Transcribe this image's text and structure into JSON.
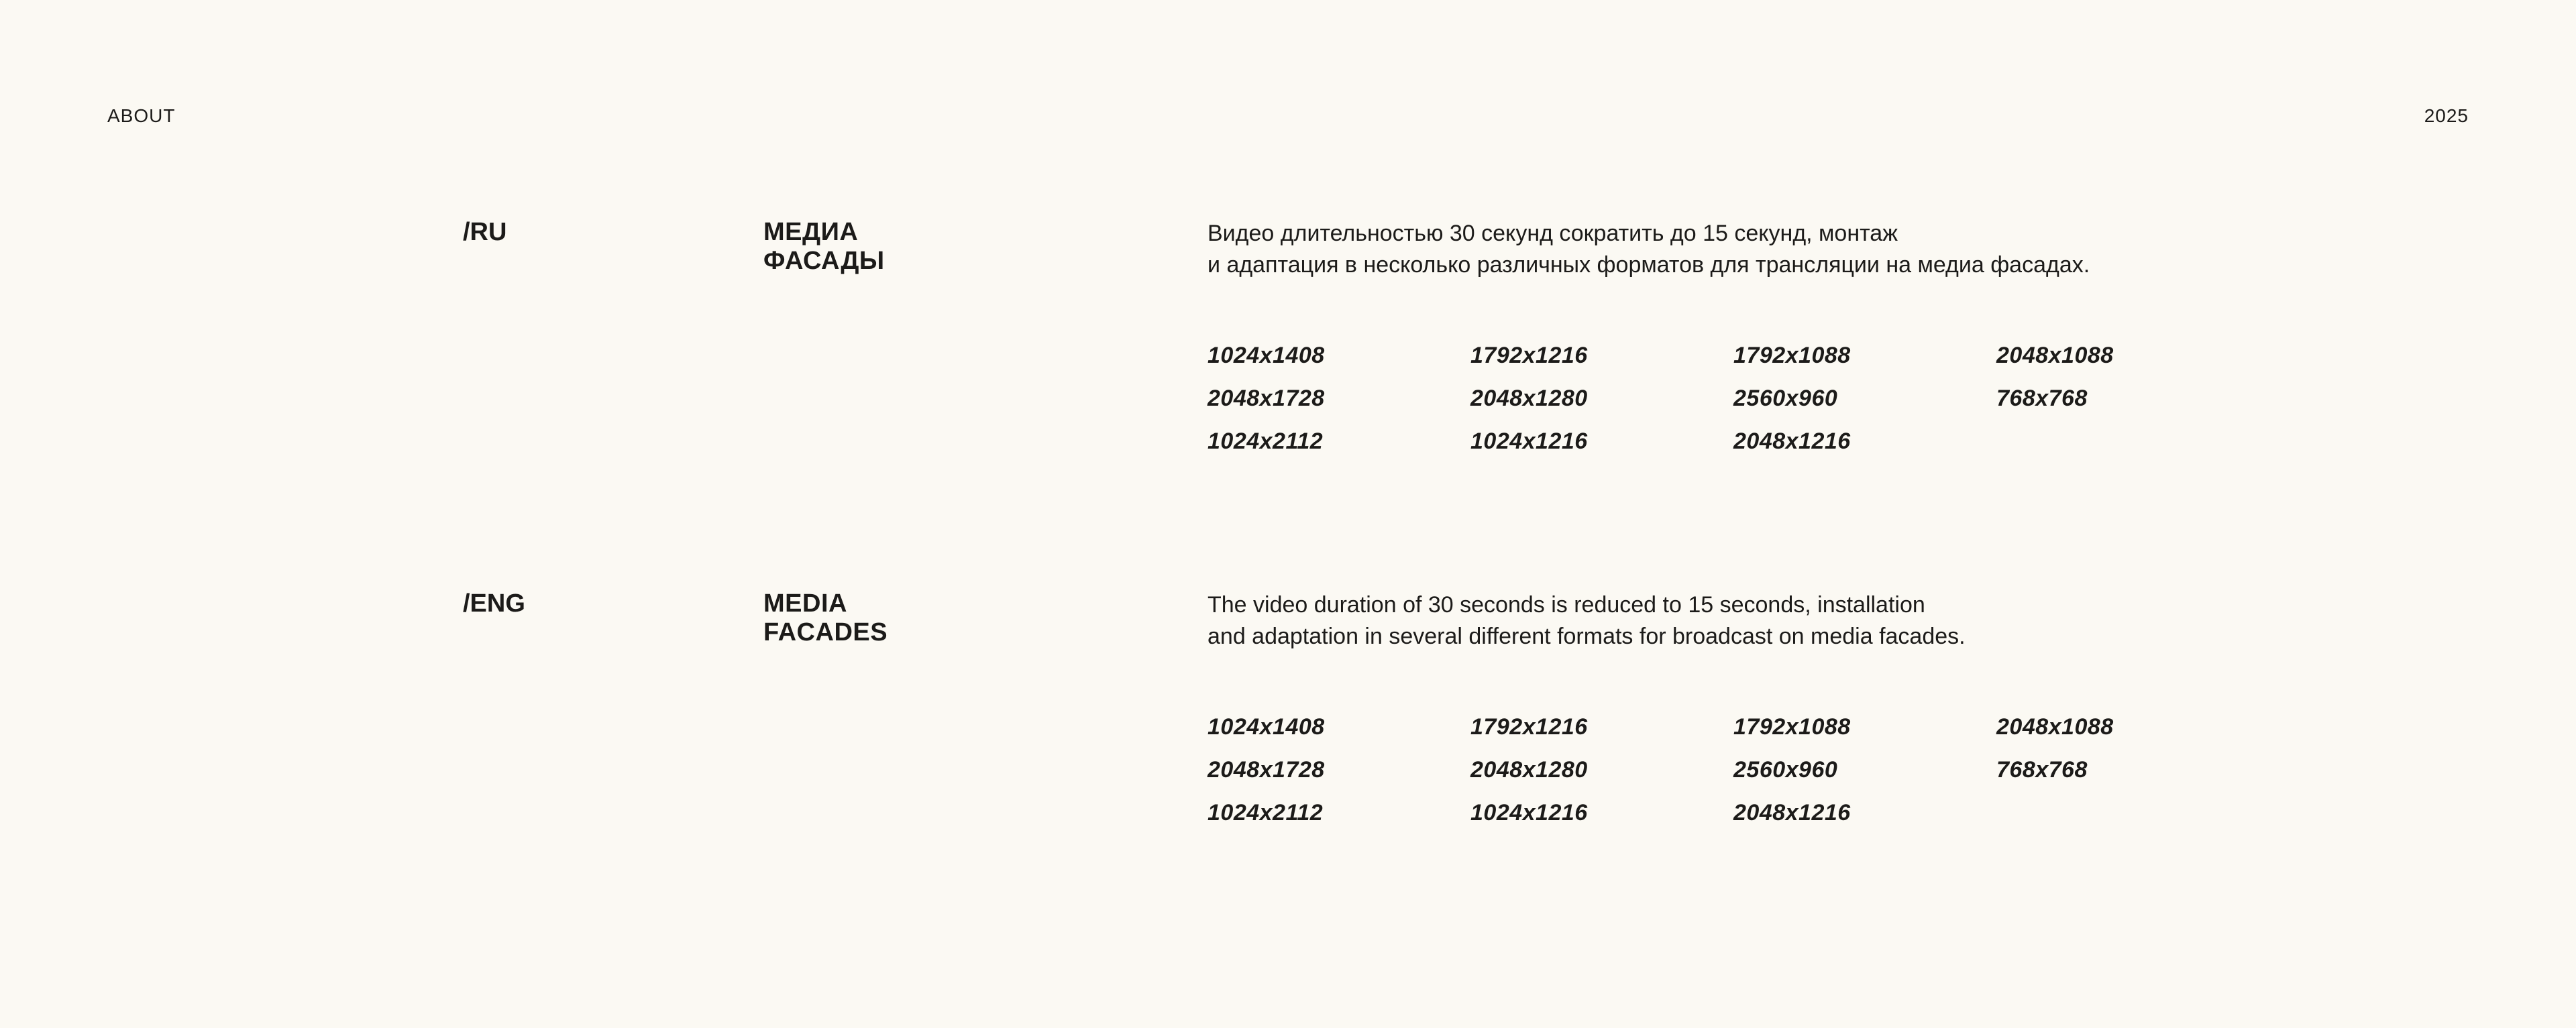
{
  "page": {
    "background_color": "#FBF9F3",
    "text_color": "#1C1B19"
  },
  "header": {
    "nav_label": "ABOUT",
    "year": "2025"
  },
  "sections": [
    {
      "lang_label": "/RU",
      "title_line1": "МЕДИА",
      "title_line2": "ФАСАДЫ",
      "description_line1": "Видео длительностью 30 секунд сократить до 15 секунд, монтаж",
      "description_line2": "и адаптация в несколько различных форматов для трансляции на медиа фасадах.",
      "resolutions": {
        "0": "1024x1408",
        "1": "1792x1216",
        "2": "1792x1088",
        "3": "2048x1088",
        "4": "2048x1728",
        "5": "2048x1280",
        "6": "2560x960",
        "7": "768x768",
        "8": "1024x2112",
        "9": "1024x1216",
        "10": "2048x1216"
      }
    },
    {
      "lang_label": "/ENG",
      "title_line1": "MEDIA",
      "title_line2": "FACADES",
      "description_line1": "The video duration of 30 seconds is reduced to 15 seconds, installation",
      "description_line2": "and adaptation in several different formats for broadcast on media facades.",
      "resolutions": {
        "0": "1024x1408",
        "1": "1792x1216",
        "2": "1792x1088",
        "3": "2048x1088",
        "4": "2048x1728",
        "5": "2048x1280",
        "6": "2560x960",
        "7": "768x768",
        "8": "1024x2112",
        "9": "1024x1216",
        "10": "2048x1216"
      }
    }
  ]
}
